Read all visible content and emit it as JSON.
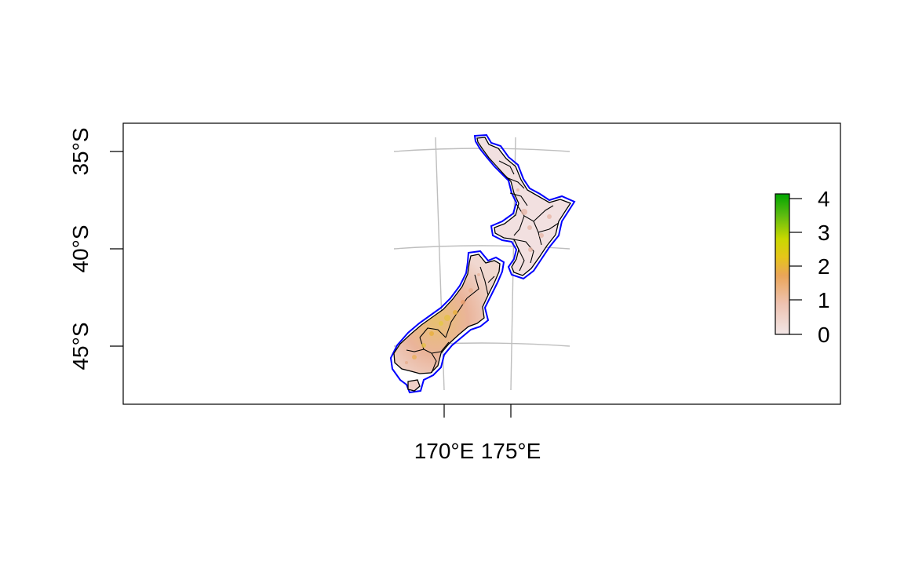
{
  "map": {
    "y_axis": {
      "ticks": [
        {
          "value": 35,
          "label": "35°S"
        },
        {
          "value": 40,
          "label": "40°S"
        },
        {
          "value": 45,
          "label": "45°S"
        }
      ]
    },
    "x_axis": {
      "ticks": [
        {
          "value": 170,
          "label": "170°E"
        },
        {
          "value": 175,
          "label": "175°E"
        }
      ]
    },
    "graticule": {
      "color": "#bebebe"
    },
    "coastline_buffer": {
      "color": "#0000ff"
    },
    "region_borders": {
      "color": "#000000"
    }
  },
  "legend": {
    "ticks": [
      "0",
      "1",
      "2",
      "3",
      "4"
    ],
    "range": [
      0,
      4
    ],
    "colors": [
      "#f2f2f2",
      "#eeb99f",
      "#eab64e",
      "#e6e600",
      "#1aa31a",
      "#00a600"
    ]
  }
}
